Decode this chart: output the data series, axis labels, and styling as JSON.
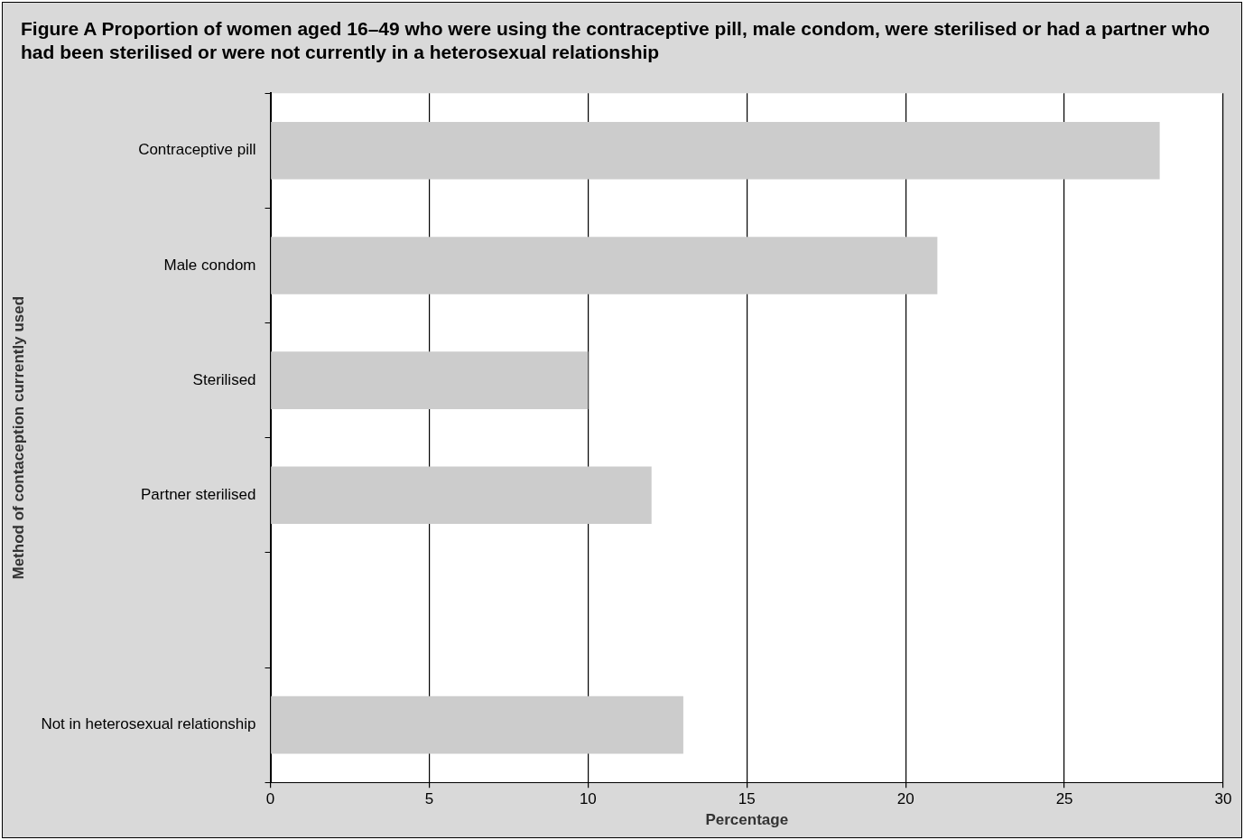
{
  "chart_data": {
    "type": "bar",
    "orientation": "horizontal",
    "title": "Figure A   Proportion of women aged 16–49 who were using the contraceptive pill, male condom, were sterilised or had a partner who had been sterilised or were not currently in a heterosexual relationship",
    "xlabel": "Percentage",
    "ylabel": "Method of contaception currently used",
    "categories": [
      "Contraceptive pill",
      "Male condom",
      "Sterilised",
      "Partner sterilised",
      null,
      "Not in heterosexual relationship"
    ],
    "values": [
      28,
      21,
      10,
      12,
      null,
      13
    ],
    "color": "#cccccc",
    "xlim": [
      0,
      30
    ],
    "xticks": [
      0,
      5,
      10,
      15,
      20,
      25,
      30
    ],
    "grid": "x",
    "legend": false
  }
}
